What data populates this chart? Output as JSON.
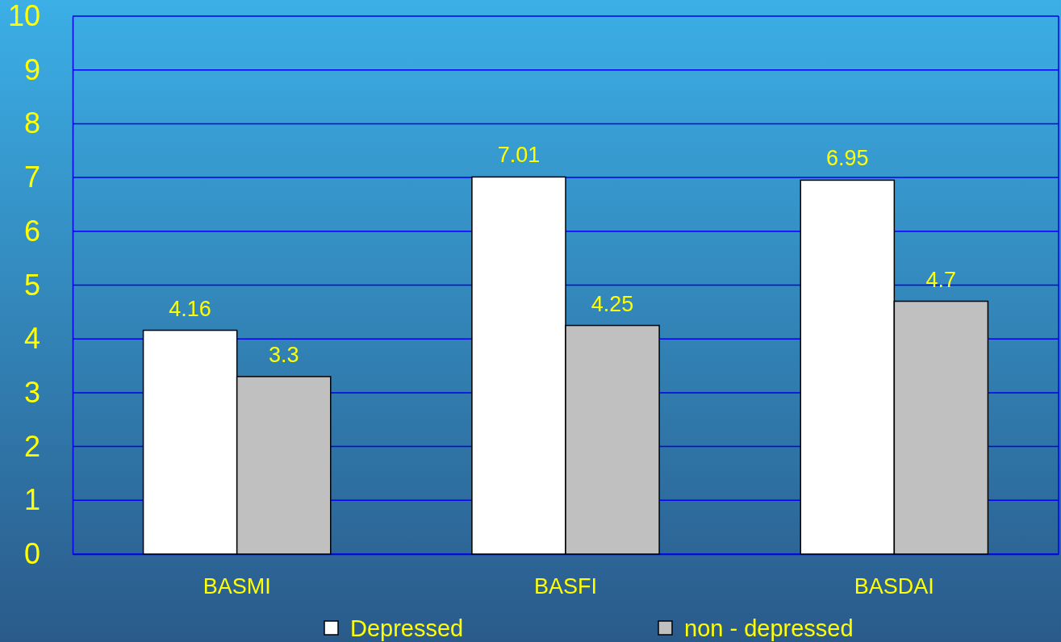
{
  "chart_data": {
    "type": "bar",
    "categories": [
      "BASMI",
      "BASFI",
      "BASDAI"
    ],
    "series": [
      {
        "name": "Depressed",
        "color": "#ffffff",
        "values": [
          4.16,
          7.01,
          6.95
        ]
      },
      {
        "name": "non - depressed",
        "color": "#c0c0c0",
        "values": [
          3.3,
          4.25,
          4.7
        ]
      }
    ],
    "ylim": [
      0,
      10
    ],
    "yticks": [
      0,
      1,
      2,
      3,
      4,
      5,
      6,
      7,
      8,
      9,
      10
    ],
    "grid": "y",
    "legend": "bottom",
    "data_labels": true
  }
}
